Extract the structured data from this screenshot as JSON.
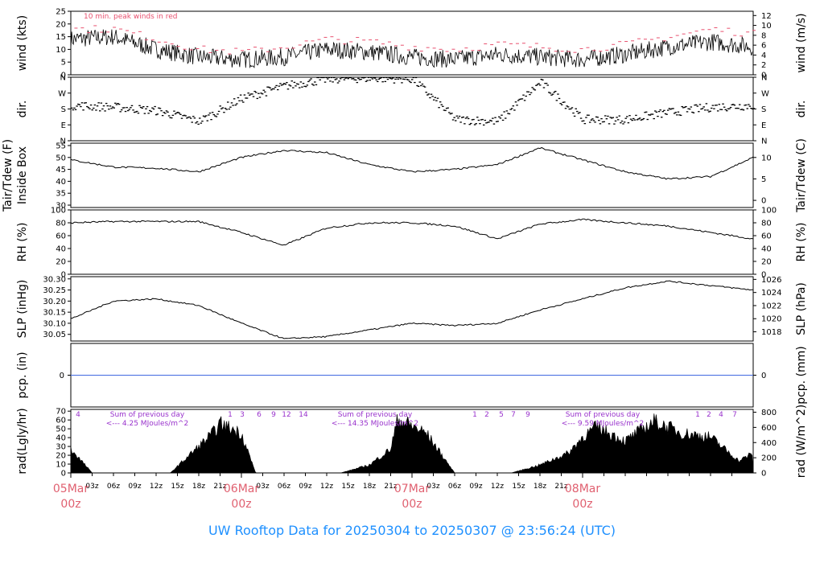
{
  "footer": {
    "title": "UW Rooftop Data for 20250304  to  20250307 @ 23:56:24  (UTC)"
  },
  "colors": {
    "wind_gust": "#e8506e",
    "precip_line": "#4169e1",
    "rad_note": "#9932cc",
    "date_label": "#e06070",
    "footer": "#1e90ff"
  },
  "chart_data": [
    {
      "type": "line",
      "name": "wind",
      "ylabel_left": "wind (kts)",
      "ylabel_right": "wind (m/s)",
      "yticks_left": [
        0,
        5,
        10,
        15,
        20,
        25
      ],
      "yticks_right": [
        0,
        2,
        4,
        6,
        8,
        10,
        12
      ],
      "ylim": [
        0,
        25
      ],
      "annotation": "10 min. peak winds in red",
      "x_hours": [
        0,
        6,
        12,
        18,
        24,
        30,
        36,
        42,
        48,
        54,
        60,
        66,
        72,
        78,
        84,
        90,
        96
      ],
      "values": [
        14,
        15,
        10,
        7,
        6,
        7,
        10,
        9,
        7,
        6,
        8,
        7,
        6,
        8,
        11,
        13,
        11
      ],
      "gust": [
        18,
        18,
        14,
        10,
        9,
        11,
        14,
        13,
        11,
        10,
        12,
        11,
        10,
        12,
        15,
        18,
        16
      ]
    },
    {
      "type": "scatter",
      "name": "dir",
      "ylabel_left": "dir.",
      "ylabel_right": "dir.",
      "ytick_labels": [
        "N",
        "E",
        "S",
        "W",
        "N"
      ],
      "ylim": [
        0,
        360
      ],
      "x_hours": [
        0,
        6,
        12,
        18,
        24,
        30,
        36,
        42,
        48,
        54,
        60,
        66,
        72,
        78,
        84,
        90,
        96
      ],
      "values": [
        200,
        190,
        170,
        110,
        240,
        310,
        350,
        355,
        350,
        120,
        110,
        330,
        120,
        120,
        160,
        190,
        200
      ]
    },
    {
      "type": "line",
      "name": "temp",
      "ylabel_left": "Tair/Tdew (F) Inside Box",
      "ylabel_right": "Tair/Tdew (C)",
      "yticks_left": [
        30,
        35,
        40,
        45,
        50,
        55
      ],
      "yticks_right": [
        0,
        5,
        10
      ],
      "ylim": [
        29,
        56
      ],
      "x_hours": [
        0,
        6,
        12,
        18,
        24,
        30,
        36,
        42,
        48,
        54,
        60,
        66,
        72,
        78,
        84,
        90,
        96
      ],
      "values": [
        49,
        46,
        45.5,
        44,
        50,
        53,
        52,
        47,
        44,
        45,
        47,
        54,
        49,
        44,
        41,
        42,
        50
      ]
    },
    {
      "type": "line",
      "name": "rh",
      "ylabel_left": "RH (%)",
      "ylabel_right": "RH (%)",
      "yticks": [
        0,
        20,
        40,
        60,
        80,
        100
      ],
      "ylim": [
        0,
        100
      ],
      "x_hours": [
        0,
        6,
        12,
        18,
        24,
        30,
        36,
        42,
        48,
        54,
        60,
        66,
        72,
        78,
        84,
        90,
        96
      ],
      "values": [
        80,
        82,
        82,
        82,
        65,
        45,
        72,
        80,
        80,
        75,
        55,
        78,
        85,
        80,
        75,
        65,
        55
      ]
    },
    {
      "type": "line",
      "name": "slp",
      "ylabel_left": "SLP (inHg)",
      "ylabel_right": "SLP (hPa)",
      "yticks_left": [
        30.05,
        30.1,
        30.15,
        30.2,
        30.25,
        30.3
      ],
      "yticks_right": [
        1018,
        1020,
        1022,
        1024,
        1026
      ],
      "ylim": [
        30.02,
        30.31
      ],
      "x_hours": [
        0,
        6,
        12,
        18,
        24,
        30,
        36,
        42,
        48,
        54,
        60,
        66,
        72,
        78,
        84,
        90,
        96
      ],
      "values": [
        30.12,
        30.2,
        30.21,
        30.18,
        30.1,
        30.03,
        30.04,
        30.07,
        30.1,
        30.09,
        30.1,
        30.16,
        30.21,
        30.26,
        30.29,
        30.27,
        30.25
      ]
    },
    {
      "type": "line",
      "name": "pcp",
      "ylabel_left": "pcp. (in)",
      "ylabel_right": "pcp. (mm)",
      "yticks": [
        0
      ],
      "values": [
        0,
        0
      ]
    },
    {
      "type": "area",
      "name": "rad",
      "ylabel_left": "rad(Lgly/hr)",
      "ylabel_right": "rad (W/m^2)",
      "yticks_left": [
        0,
        10,
        20,
        30,
        40,
        50,
        60,
        70
      ],
      "yticks_right": [
        0,
        200,
        400,
        600,
        800
      ],
      "ylim": [
        0,
        72
      ],
      "x_hours": [
        0,
        3,
        14,
        17,
        20,
        21,
        24,
        26,
        38,
        42,
        45,
        46,
        50,
        54,
        62,
        66,
        70,
        72,
        74
      ],
      "values": [
        30,
        0,
        0,
        25,
        50,
        62,
        50,
        0,
        0,
        10,
        30,
        68,
        50,
        0,
        0,
        10,
        25,
        45,
        58
      ],
      "hour_marks": [
        "4",
        "1",
        "3",
        "6",
        "9",
        "12",
        "14",
        "1",
        "2",
        "5",
        "7",
        "9",
        "1",
        "2",
        "4",
        "7"
      ],
      "notes": [
        {
          "line1": "Sum of previous day",
          "line2": "<--- 4.25 MJoules/m^2"
        },
        {
          "line1": "Sum of previous day",
          "line2": "<--- 14.35 MJoules/m^2"
        },
        {
          "line1": "Sum of previous day",
          "line2": "<--- 9.59 MJoules/m^2"
        }
      ]
    }
  ],
  "x_axis": {
    "tick_labels": [
      "03z",
      "06z",
      "09z",
      "12z",
      "15z",
      "18z",
      "21z",
      "03z",
      "06z",
      "09z",
      "12z",
      "15z",
      "18z",
      "21z",
      "03z",
      "06z",
      "09z",
      "12z",
      "15z",
      "18z",
      "21z"
    ],
    "day_labels": [
      {
        "date": "05Mar",
        "time": "00z"
      },
      {
        "date": "06Mar",
        "time": "00z"
      },
      {
        "date": "07Mar",
        "time": "00z"
      },
      {
        "date": "08Mar",
        "time": "00z"
      }
    ]
  }
}
